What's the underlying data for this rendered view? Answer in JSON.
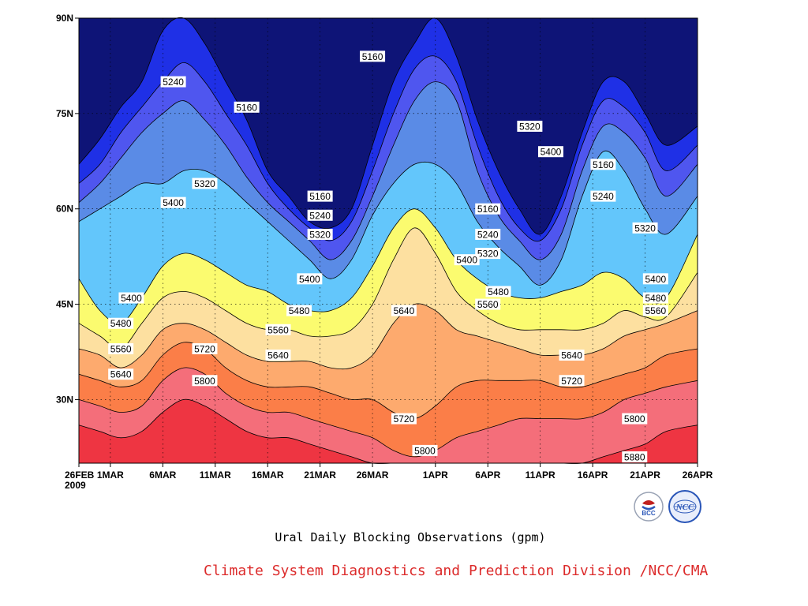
{
  "chart_data": {
    "type": "contour",
    "title": "",
    "xlabel": "Ural Daily Blocking Observations (gpm)",
    "ylabel": "",
    "units": "gpm",
    "x_tick_labels": [
      "26FEB",
      "1MAR",
      "6MAR",
      "11MAR",
      "16MAR",
      "21MAR",
      "26MAR",
      "1APR",
      "6APR",
      "11APR",
      "16APR",
      "21APR",
      "26APR"
    ],
    "x_tick_days": [
      0,
      3,
      8,
      13,
      18,
      23,
      28,
      34,
      39,
      44,
      49,
      54,
      59
    ],
    "x_year_label": "2009",
    "y_tick_labels": [
      "90N",
      "75N",
      "60N",
      "45N",
      "30N"
    ],
    "y_tick_values": [
      90,
      75,
      60,
      45,
      30
    ],
    "xlim": [
      "26FEB2009",
      "26APR2009"
    ],
    "ylim": [
      20,
      90
    ],
    "grid": true,
    "contour_levels": [
      5160,
      5240,
      5320,
      5400,
      5480,
      5560,
      5640,
      5720,
      5800,
      5880
    ],
    "fill_colors": [
      "#0e1477",
      "#1f30e6",
      "#4f56ef",
      "#5a8be6",
      "#63c6fb",
      "#fbfb6f",
      "#fde0a0",
      "#fdaa6e",
      "#fb7e48",
      "#f46e7a",
      "#ee3542"
    ],
    "contours": [
      {
        "level": 5160,
        "lat": [
          67,
          71,
          76,
          80,
          88,
          90,
          86,
          80,
          74,
          66,
          62,
          58,
          57,
          60,
          70,
          80,
          86,
          90,
          84,
          74,
          66,
          60,
          56,
          62,
          72,
          80,
          80,
          75,
          70,
          73
        ]
      },
      {
        "level": 5240,
        "lat": [
          64,
          67,
          72,
          76,
          80,
          83,
          80,
          75,
          70,
          64,
          60,
          57,
          55,
          58,
          66,
          75,
          82,
          84,
          80,
          70,
          62,
          57,
          55,
          60,
          70,
          77,
          76,
          72,
          66,
          70
        ]
      },
      {
        "level": 5320,
        "lat": [
          61,
          64,
          68,
          72,
          75,
          77,
          74,
          70,
          65,
          61,
          58,
          55,
          52,
          55,
          62,
          70,
          77,
          80,
          77,
          66,
          59,
          55,
          52,
          56,
          66,
          73,
          72,
          68,
          62,
          67
        ]
      },
      {
        "level": 5400,
        "lat": [
          58,
          60,
          62,
          64,
          64,
          66,
          66,
          64,
          61,
          58,
          55,
          52,
          49,
          52,
          59,
          64,
          67,
          67,
          64,
          58,
          54,
          51,
          48,
          52,
          62,
          69,
          66,
          60,
          56,
          62
        ]
      },
      {
        "level": 5480,
        "lat": [
          49,
          44,
          42,
          46,
          51,
          53,
          52,
          50,
          48,
          47,
          45,
          44,
          44,
          46,
          51,
          57,
          60,
          57,
          52,
          49,
          47,
          46,
          46,
          47,
          48,
          50,
          49,
          46,
          46,
          56
        ]
      },
      {
        "level": 5560,
        "lat": [
          42,
          40,
          38,
          42,
          46,
          47,
          46,
          44,
          42,
          41,
          41,
          40,
          40,
          41,
          45,
          52,
          57,
          53,
          47,
          44,
          42,
          41,
          41,
          41,
          41,
          42,
          44,
          43,
          43,
          50
        ]
      },
      {
        "level": 5640,
        "lat": [
          38,
          37,
          35,
          37,
          41,
          42,
          41,
          39,
          37,
          36,
          36,
          36,
          35,
          35,
          37,
          42,
          45,
          44,
          41,
          40,
          39,
          38,
          37,
          37,
          37,
          38,
          40,
          41,
          42,
          44
        ]
      },
      {
        "level": 5720,
        "lat": [
          34,
          33,
          32,
          33,
          37,
          39,
          38,
          35,
          33,
          32,
          32,
          32,
          31,
          30,
          30,
          28,
          27,
          29,
          32,
          33,
          33,
          33,
          33,
          32,
          32,
          33,
          34,
          35,
          37,
          38
        ]
      },
      {
        "level": 5800,
        "lat": [
          30,
          29,
          28,
          29,
          33,
          35,
          34,
          31,
          29,
          28,
          28,
          27,
          26,
          25,
          24,
          22,
          21,
          22,
          24,
          25,
          26,
          27,
          27,
          27,
          27,
          28,
          30,
          31,
          32,
          33
        ]
      },
      {
        "level": 5880,
        "lat": [
          26,
          25,
          24,
          25,
          28,
          30,
          29,
          27,
          25,
          24,
          24,
          23,
          22,
          21,
          20,
          18,
          17,
          18,
          19,
          20,
          20,
          20,
          20,
          20,
          20,
          21,
          22,
          23,
          25,
          26
        ]
      }
    ],
    "contour_x_days": [
      0,
      2,
      4,
      6,
      8,
      10,
      12,
      14,
      16,
      18,
      20,
      22,
      24,
      26,
      28,
      30,
      32,
      34,
      36,
      38,
      40,
      42,
      44,
      46,
      48,
      50,
      52,
      54,
      56,
      59
    ],
    "contour_labels": [
      {
        "text": "5160",
        "day": 28,
        "lat": 84
      },
      {
        "text": "5160",
        "day": 16,
        "lat": 76
      },
      {
        "text": "5160",
        "day": 23,
        "lat": 62
      },
      {
        "text": "5160",
        "day": 39,
        "lat": 60
      },
      {
        "text": "5160",
        "day": 50,
        "lat": 67
      },
      {
        "text": "5240",
        "day": 9,
        "lat": 80
      },
      {
        "text": "5240",
        "day": 23,
        "lat": 59
      },
      {
        "text": "5240",
        "day": 39,
        "lat": 56
      },
      {
        "text": "5240",
        "day": 50,
        "lat": 62
      },
      {
        "text": "5320",
        "day": 12,
        "lat": 64
      },
      {
        "text": "5320",
        "day": 23,
        "lat": 56
      },
      {
        "text": "5320",
        "day": 39,
        "lat": 53
      },
      {
        "text": "5320",
        "day": 43,
        "lat": 73
      },
      {
        "text": "5320",
        "day": 54,
        "lat": 57
      },
      {
        "text": "5400",
        "day": 9,
        "lat": 61
      },
      {
        "text": "5400",
        "day": 5,
        "lat": 46
      },
      {
        "text": "5400",
        "day": 22,
        "lat": 49
      },
      {
        "text": "5400",
        "day": 37,
        "lat": 52
      },
      {
        "text": "5400",
        "day": 45,
        "lat": 69
      },
      {
        "text": "5400",
        "day": 55,
        "lat": 49
      },
      {
        "text": "5480",
        "day": 4,
        "lat": 42
      },
      {
        "text": "5480",
        "day": 21,
        "lat": 44
      },
      {
        "text": "5480",
        "day": 40,
        "lat": 47
      },
      {
        "text": "5480",
        "day": 55,
        "lat": 46
      },
      {
        "text": "5560",
        "day": 4,
        "lat": 38
      },
      {
        "text": "5560",
        "day": 19,
        "lat": 41
      },
      {
        "text": "5560",
        "day": 39,
        "lat": 45
      },
      {
        "text": "5560",
        "day": 55,
        "lat": 44
      },
      {
        "text": "5640",
        "day": 4,
        "lat": 34
      },
      {
        "text": "5640",
        "day": 19,
        "lat": 37
      },
      {
        "text": "5640",
        "day": 31,
        "lat": 44
      },
      {
        "text": "5640",
        "day": 47,
        "lat": 37
      },
      {
        "text": "5720",
        "day": 12,
        "lat": 38
      },
      {
        "text": "5720",
        "day": 31,
        "lat": 27
      },
      {
        "text": "5720",
        "day": 47,
        "lat": 33
      },
      {
        "text": "5800",
        "day": 12,
        "lat": 33
      },
      {
        "text": "5800",
        "day": 33,
        "lat": 22
      },
      {
        "text": "5800",
        "day": 53,
        "lat": 27
      },
      {
        "text": "5880",
        "day": 53,
        "lat": 21
      }
    ]
  },
  "footer": {
    "title": "Ural Daily Blocking Observations (gpm)",
    "credit": "Climate System Diagnostics and Prediction Division /NCC/CMA"
  },
  "logos": {
    "bcc_text": "BCC",
    "ncc_text": "NCC",
    "bcc_color": "#c0201e",
    "ncc_color": "#2a56b8"
  }
}
